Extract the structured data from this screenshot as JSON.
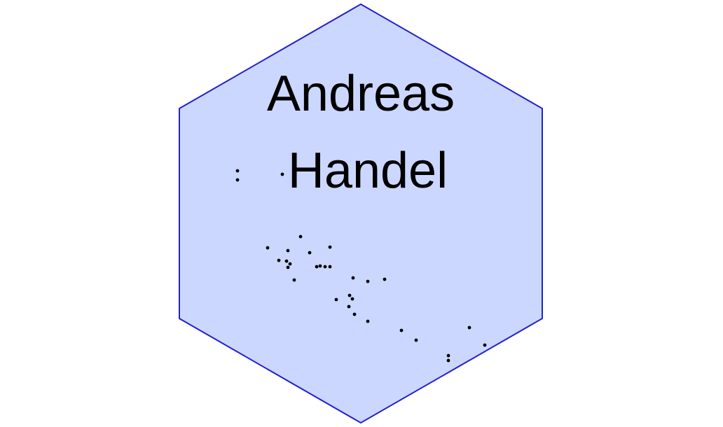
{
  "logo": {
    "name_line1": "Andreas",
    "name_line2": "Handel",
    "fill_color": "#ccd7ff",
    "border_color": "#2222cc",
    "text_color": "#000000",
    "dot_color": "#000000"
  }
}
